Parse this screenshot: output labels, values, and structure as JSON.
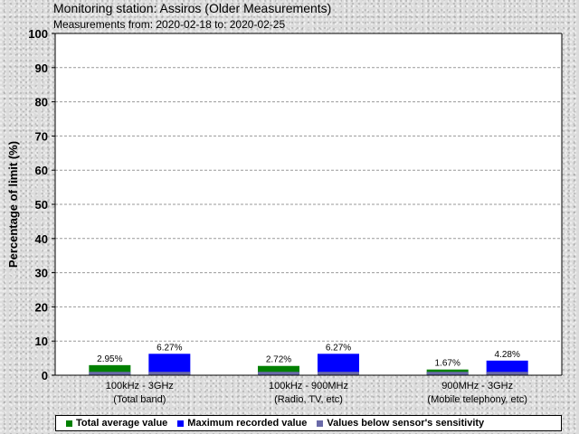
{
  "header": {
    "title": "Monitoring station: Assiros (Older Measurements)",
    "subtitle": "Measurements from: 2020-02-18 to: 2020-02-25"
  },
  "chart_data": {
    "type": "bar",
    "ylabel": "Percentage of limit (%)",
    "ylim": [
      0,
      100
    ],
    "yticks": [
      "0",
      "10",
      "20",
      "30",
      "40",
      "50",
      "60",
      "70",
      "80",
      "90",
      "100"
    ],
    "grid": true,
    "legend_position": "bottom",
    "categories": [
      {
        "line1": "100kHz - 3GHz",
        "line2": "(Total band)"
      },
      {
        "line1": "100kHz - 900MHz",
        "line2": "(Radio, TV, etc)"
      },
      {
        "line1": "900MHz - 3GHz",
        "line2": "(Mobile telephony, etc)"
      }
    ],
    "series": [
      {
        "name": "Total average value",
        "color": "#008000",
        "values": [
          2.95,
          2.72,
          1.67
        ],
        "labels": [
          "2.95%",
          "2.72%",
          "1.67%"
        ]
      },
      {
        "name": "Maximum recorded value",
        "color": "#0000ff",
        "values": [
          6.27,
          6.27,
          4.28
        ],
        "labels": [
          "6.27%",
          "6.27%",
          "4.28%"
        ]
      }
    ],
    "sensitivity": {
      "name": "Values below sensor's sensitivity",
      "color": "#6a6aa8",
      "value": 1
    }
  }
}
